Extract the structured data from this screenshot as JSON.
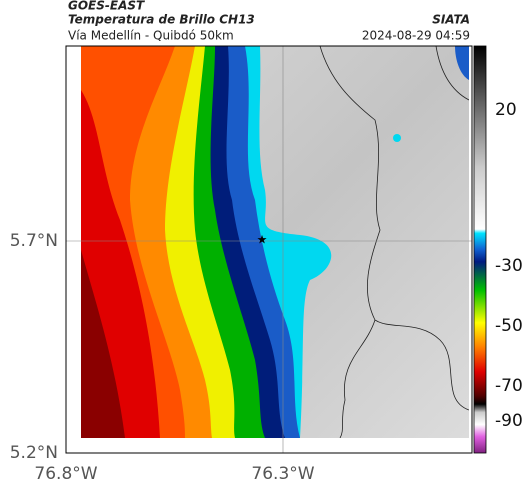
{
  "header": {
    "satellite": "GOES-EAST",
    "title": "Temperatura de Brillo CH13",
    "source": "SIATA",
    "subtitle": "Vía Medellín - Quibdó 50km",
    "datetime": "2024-08-29 04:59"
  },
  "axes": {
    "y_labels": [
      "5.7°N",
      "5.2°N"
    ],
    "x_labels": [
      "76.8°W",
      "76.3°W"
    ]
  },
  "colorbar": {
    "labels": [
      "20",
      "-30",
      "-50",
      "-70",
      "-90"
    ]
  }
}
